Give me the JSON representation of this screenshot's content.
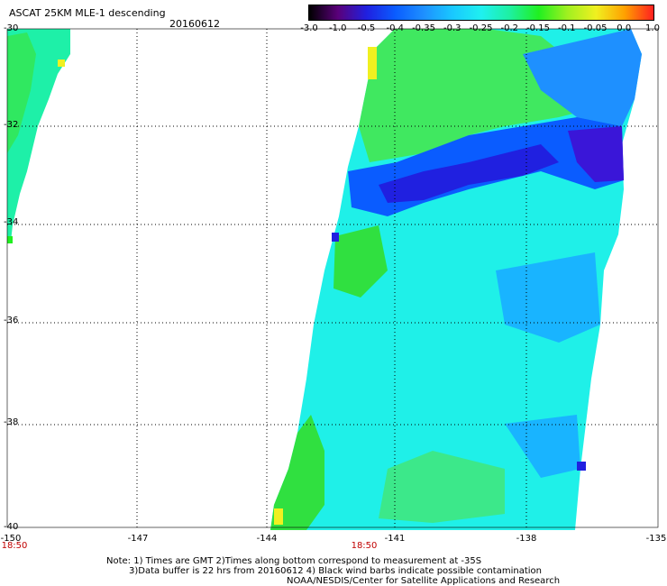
{
  "header": {
    "title": "ASCAT 25KM MLE-1 descending",
    "date": "20160612"
  },
  "colorbar": {
    "labels": [
      "-3.0",
      "-1.0",
      "-0.5",
      "-0.4",
      "-0.35",
      "-0.3",
      "-0.25",
      "-0.2",
      "-0.15",
      "-0.1",
      "-0.05",
      "0.0",
      "1.0"
    ],
    "colors": [
      "#000000",
      "#5a007a",
      "#2020e0",
      "#0a5cff",
      "#1e90ff",
      "#19c8ff",
      "#1ff0f0",
      "#1ef0a0",
      "#20f020",
      "#a0f020",
      "#f0f020",
      "#ffa000",
      "#ff2020"
    ]
  },
  "map": {
    "y_axis_labels": [
      "-30",
      "-32",
      "-34",
      "-36",
      "-38",
      "-40"
    ],
    "x_axis_labels": [
      "-150",
      "-147",
      "-144",
      "-141",
      "-138",
      "-135"
    ],
    "time_labels": [
      "18:50",
      "18:50"
    ],
    "lat_range": [
      -40,
      -30
    ],
    "lon_range": [
      -150,
      -135
    ],
    "grid": true
  },
  "notes": {
    "line1": "Note: 1) Times are GMT 2)Times along bottom correspond to measurement at -35S",
    "line2": "3)Data buffer is 22 hrs from 20160612 4) Black wind barbs indicate possible contamination",
    "line3": "NOAA/NESDIS/Center for Satellite Applications and Research"
  }
}
